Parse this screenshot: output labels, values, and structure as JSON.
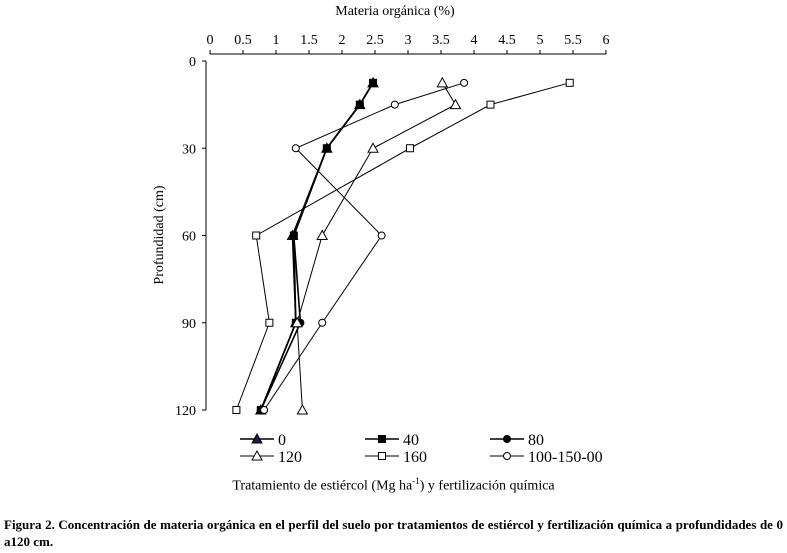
{
  "chart_data": {
    "type": "line",
    "title": "",
    "xlabel": "Materia orgánica (%)",
    "ylabel": "Profundidad (cm)",
    "x_ticks": [
      "0",
      "0.5",
      "1",
      "1.5",
      "2",
      "2.5",
      "3",
      "3.5",
      "4",
      "4.5",
      "5",
      "5.5",
      "6"
    ],
    "y_ticks": [
      "0",
      "30",
      "60",
      "90",
      "120"
    ],
    "xlim": [
      0,
      6
    ],
    "ylim": [
      0,
      120
    ],
    "y_inverted": true,
    "x_axis_position": "top",
    "grid": false,
    "legend_title": "Tratamiento de estiércol (Mg ha-1) y fertilización química",
    "legend_position": "bottom",
    "series": [
      {
        "name": "0",
        "marker": "triangle-filled",
        "color": "#1a1a50",
        "points": [
          [
            2.47,
            7.5
          ],
          [
            2.27,
            15
          ],
          [
            1.77,
            30
          ],
          [
            1.25,
            60
          ],
          [
            1.3,
            90
          ],
          [
            0.77,
            120
          ]
        ]
      },
      {
        "name": "40",
        "marker": "square-filled",
        "color": "#000000",
        "points": [
          [
            2.47,
            7.5
          ],
          [
            2.27,
            15
          ],
          [
            1.77,
            30
          ],
          [
            1.27,
            60
          ],
          [
            1.3,
            90
          ],
          [
            0.77,
            120
          ]
        ]
      },
      {
        "name": "80",
        "marker": "circle-filled",
        "color": "#000000",
        "points": [
          [
            2.47,
            7.5
          ],
          [
            2.27,
            15
          ],
          [
            1.77,
            30
          ],
          [
            1.27,
            60
          ],
          [
            1.37,
            90
          ],
          [
            0.77,
            120
          ]
        ]
      },
      {
        "name": "120",
        "marker": "triangle-open",
        "color": "#000000",
        "points": [
          [
            3.52,
            7.5
          ],
          [
            3.72,
            15
          ],
          [
            2.47,
            30
          ],
          [
            1.7,
            60
          ],
          [
            1.32,
            90
          ],
          [
            1.4,
            120
          ]
        ]
      },
      {
        "name": "160",
        "marker": "square-open",
        "color": "#000000",
        "points": [
          [
            5.45,
            7.5
          ],
          [
            4.25,
            15
          ],
          [
            3.03,
            30
          ],
          [
            0.7,
            60
          ],
          [
            0.9,
            90
          ],
          [
            0.4,
            120
          ]
        ]
      },
      {
        "name": "100-150-00",
        "marker": "circle-open",
        "color": "#000000",
        "points": [
          [
            3.85,
            7.5
          ],
          [
            2.8,
            15
          ],
          [
            1.3,
            30
          ],
          [
            2.6,
            60
          ],
          [
            1.7,
            90
          ],
          [
            0.82,
            120
          ]
        ]
      }
    ]
  },
  "legend_title_main": "Tratamiento de estiércol (Mg ha",
  "legend_title_sup": "-1",
  "legend_title_tail": ") y fertilización química",
  "caption": "Figura 2. Concentración de materia orgánica en el perfil del suelo por tratamientos de estiércol y fertilización química a profundidades de 0 a120 cm."
}
